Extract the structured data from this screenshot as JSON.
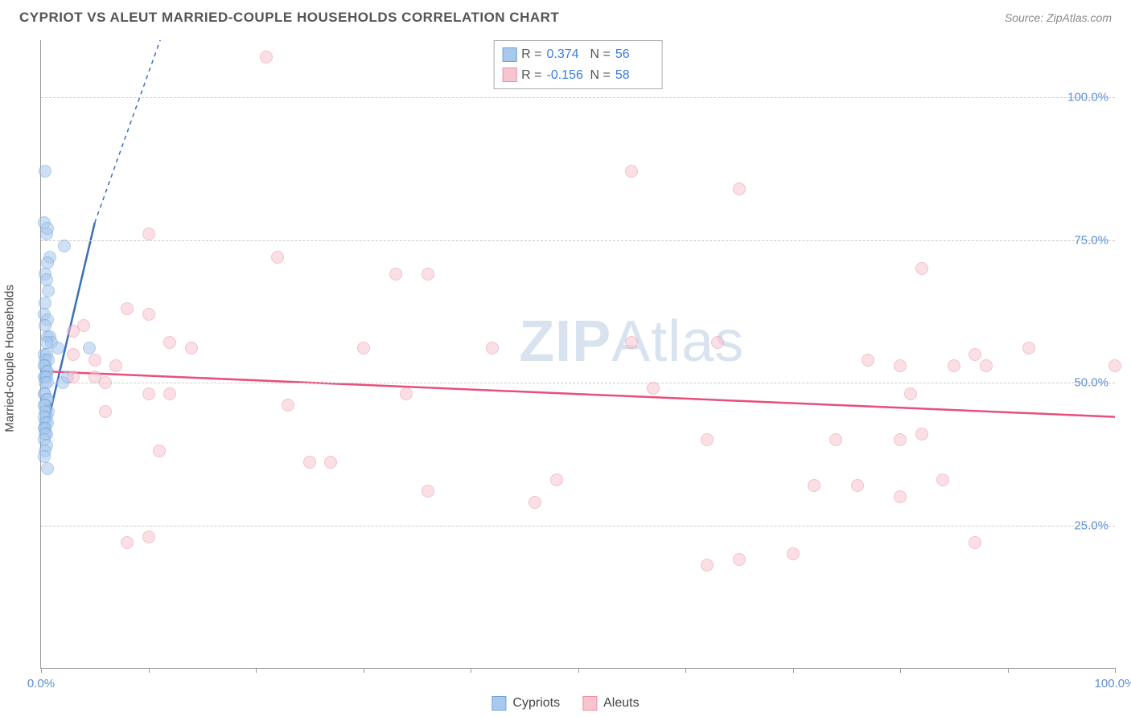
{
  "title": "CYPRIOT VS ALEUT MARRIED-COUPLE HOUSEHOLDS CORRELATION CHART",
  "source": "Source: ZipAtlas.com",
  "yaxis_title": "Married-couple Households",
  "watermark_bold": "ZIP",
  "watermark_rest": "Atlas",
  "chart": {
    "type": "scatter",
    "xlim": [
      0,
      100
    ],
    "ylim": [
      0,
      110
    ],
    "y_gridlines": [
      25,
      50,
      75,
      100
    ],
    "y_labels": [
      "25.0%",
      "50.0%",
      "75.0%",
      "100.0%"
    ],
    "x_ticks": [
      0,
      10,
      20,
      30,
      40,
      50,
      60,
      70,
      80,
      90,
      100
    ],
    "x_labels": {
      "0": "0.0%",
      "100": "100.0%"
    },
    "background_color": "#ffffff",
    "grid_color": "#cccccc",
    "axis_color": "#999999",
    "marker_size": 16,
    "series": [
      {
        "name": "Cypriots",
        "fill": "#a8c8ec",
        "stroke": "#6fa3dc",
        "fill_opacity": 0.55,
        "r_value": "0.374",
        "n_value": "56",
        "trend": {
          "x1": 0.5,
          "y1": 42,
          "x2": 5,
          "y2": 78,
          "dash_ext_x2": 13,
          "dash_ext_y2": 120,
          "color": "#3b6fb8",
          "width": 2.5
        },
        "points": [
          [
            0.4,
            87
          ],
          [
            0.3,
            78
          ],
          [
            0.5,
            76
          ],
          [
            0.6,
            77
          ],
          [
            2.2,
            74
          ],
          [
            0.8,
            72
          ],
          [
            0.6,
            71
          ],
          [
            0.4,
            69
          ],
          [
            0.5,
            68
          ],
          [
            0.7,
            66
          ],
          [
            0.4,
            64
          ],
          [
            0.3,
            62
          ],
          [
            0.6,
            61
          ],
          [
            0.4,
            60
          ],
          [
            0.6,
            58
          ],
          [
            0.8,
            58
          ],
          [
            1.0,
            57
          ],
          [
            0.5,
            57
          ],
          [
            1.6,
            56
          ],
          [
            4.5,
            56
          ],
          [
            0.3,
            55
          ],
          [
            0.5,
            55
          ],
          [
            0.4,
            54
          ],
          [
            0.7,
            54
          ],
          [
            0.4,
            53
          ],
          [
            0.3,
            53
          ],
          [
            0.5,
            52
          ],
          [
            0.6,
            52
          ],
          [
            0.4,
            51
          ],
          [
            0.3,
            51
          ],
          [
            0.5,
            51
          ],
          [
            0.4,
            50
          ],
          [
            0.6,
            50
          ],
          [
            2.0,
            50
          ],
          [
            2.5,
            51
          ],
          [
            0.3,
            48
          ],
          [
            0.4,
            48
          ],
          [
            0.5,
            47
          ],
          [
            0.6,
            47
          ],
          [
            0.4,
            46
          ],
          [
            0.3,
            46
          ],
          [
            0.7,
            45
          ],
          [
            0.4,
            45
          ],
          [
            0.5,
            44
          ],
          [
            0.3,
            44
          ],
          [
            0.4,
            43
          ],
          [
            0.6,
            43
          ],
          [
            0.3,
            42
          ],
          [
            0.4,
            42
          ],
          [
            0.5,
            41
          ],
          [
            0.4,
            41
          ],
          [
            0.3,
            40
          ],
          [
            0.5,
            39
          ],
          [
            0.4,
            38
          ],
          [
            0.3,
            37
          ],
          [
            0.6,
            35
          ]
        ]
      },
      {
        "name": "Aleuts",
        "fill": "#f7c5d0",
        "stroke": "#ec8fa6",
        "fill_opacity": 0.55,
        "r_value": "-0.156",
        "n_value": "58",
        "trend": {
          "x1": 0,
          "y1": 52,
          "x2": 100,
          "y2": 44,
          "color": "#e84f7a",
          "width": 2.5
        },
        "points": [
          [
            21,
            107
          ],
          [
            55,
            87
          ],
          [
            65,
            84
          ],
          [
            10,
            76
          ],
          [
            22,
            72
          ],
          [
            33,
            69
          ],
          [
            36,
            69
          ],
          [
            82,
            70
          ],
          [
            8,
            63
          ],
          [
            10,
            62
          ],
          [
            4,
            60
          ],
          [
            3,
            59
          ],
          [
            12,
            57
          ],
          [
            14,
            56
          ],
          [
            30,
            56
          ],
          [
            42,
            56
          ],
          [
            55,
            57
          ],
          [
            63,
            57
          ],
          [
            87,
            55
          ],
          [
            92,
            56
          ],
          [
            3,
            55
          ],
          [
            5,
            54
          ],
          [
            7,
            53
          ],
          [
            77,
            54
          ],
          [
            80,
            53
          ],
          [
            85,
            53
          ],
          [
            88,
            53
          ],
          [
            100,
            53
          ],
          [
            3,
            51
          ],
          [
            5,
            51
          ],
          [
            6,
            50
          ],
          [
            57,
            49
          ],
          [
            10,
            48
          ],
          [
            12,
            48
          ],
          [
            34,
            48
          ],
          [
            81,
            48
          ],
          [
            23,
            46
          ],
          [
            6,
            45
          ],
          [
            62,
            40
          ],
          [
            74,
            40
          ],
          [
            80,
            40
          ],
          [
            82,
            41
          ],
          [
            11,
            38
          ],
          [
            25,
            36
          ],
          [
            27,
            36
          ],
          [
            48,
            33
          ],
          [
            72,
            32
          ],
          [
            76,
            32
          ],
          [
            36,
            31
          ],
          [
            46,
            29
          ],
          [
            10,
            23
          ],
          [
            8,
            22
          ],
          [
            70,
            20
          ],
          [
            65,
            19
          ],
          [
            62,
            18
          ],
          [
            87,
            22
          ],
          [
            84,
            33
          ],
          [
            80,
            30
          ]
        ]
      }
    ],
    "legend_bottom": [
      "Cypriots",
      "Aleuts"
    ],
    "stat_legend_labels": {
      "r": "R =",
      "n": "N ="
    }
  }
}
